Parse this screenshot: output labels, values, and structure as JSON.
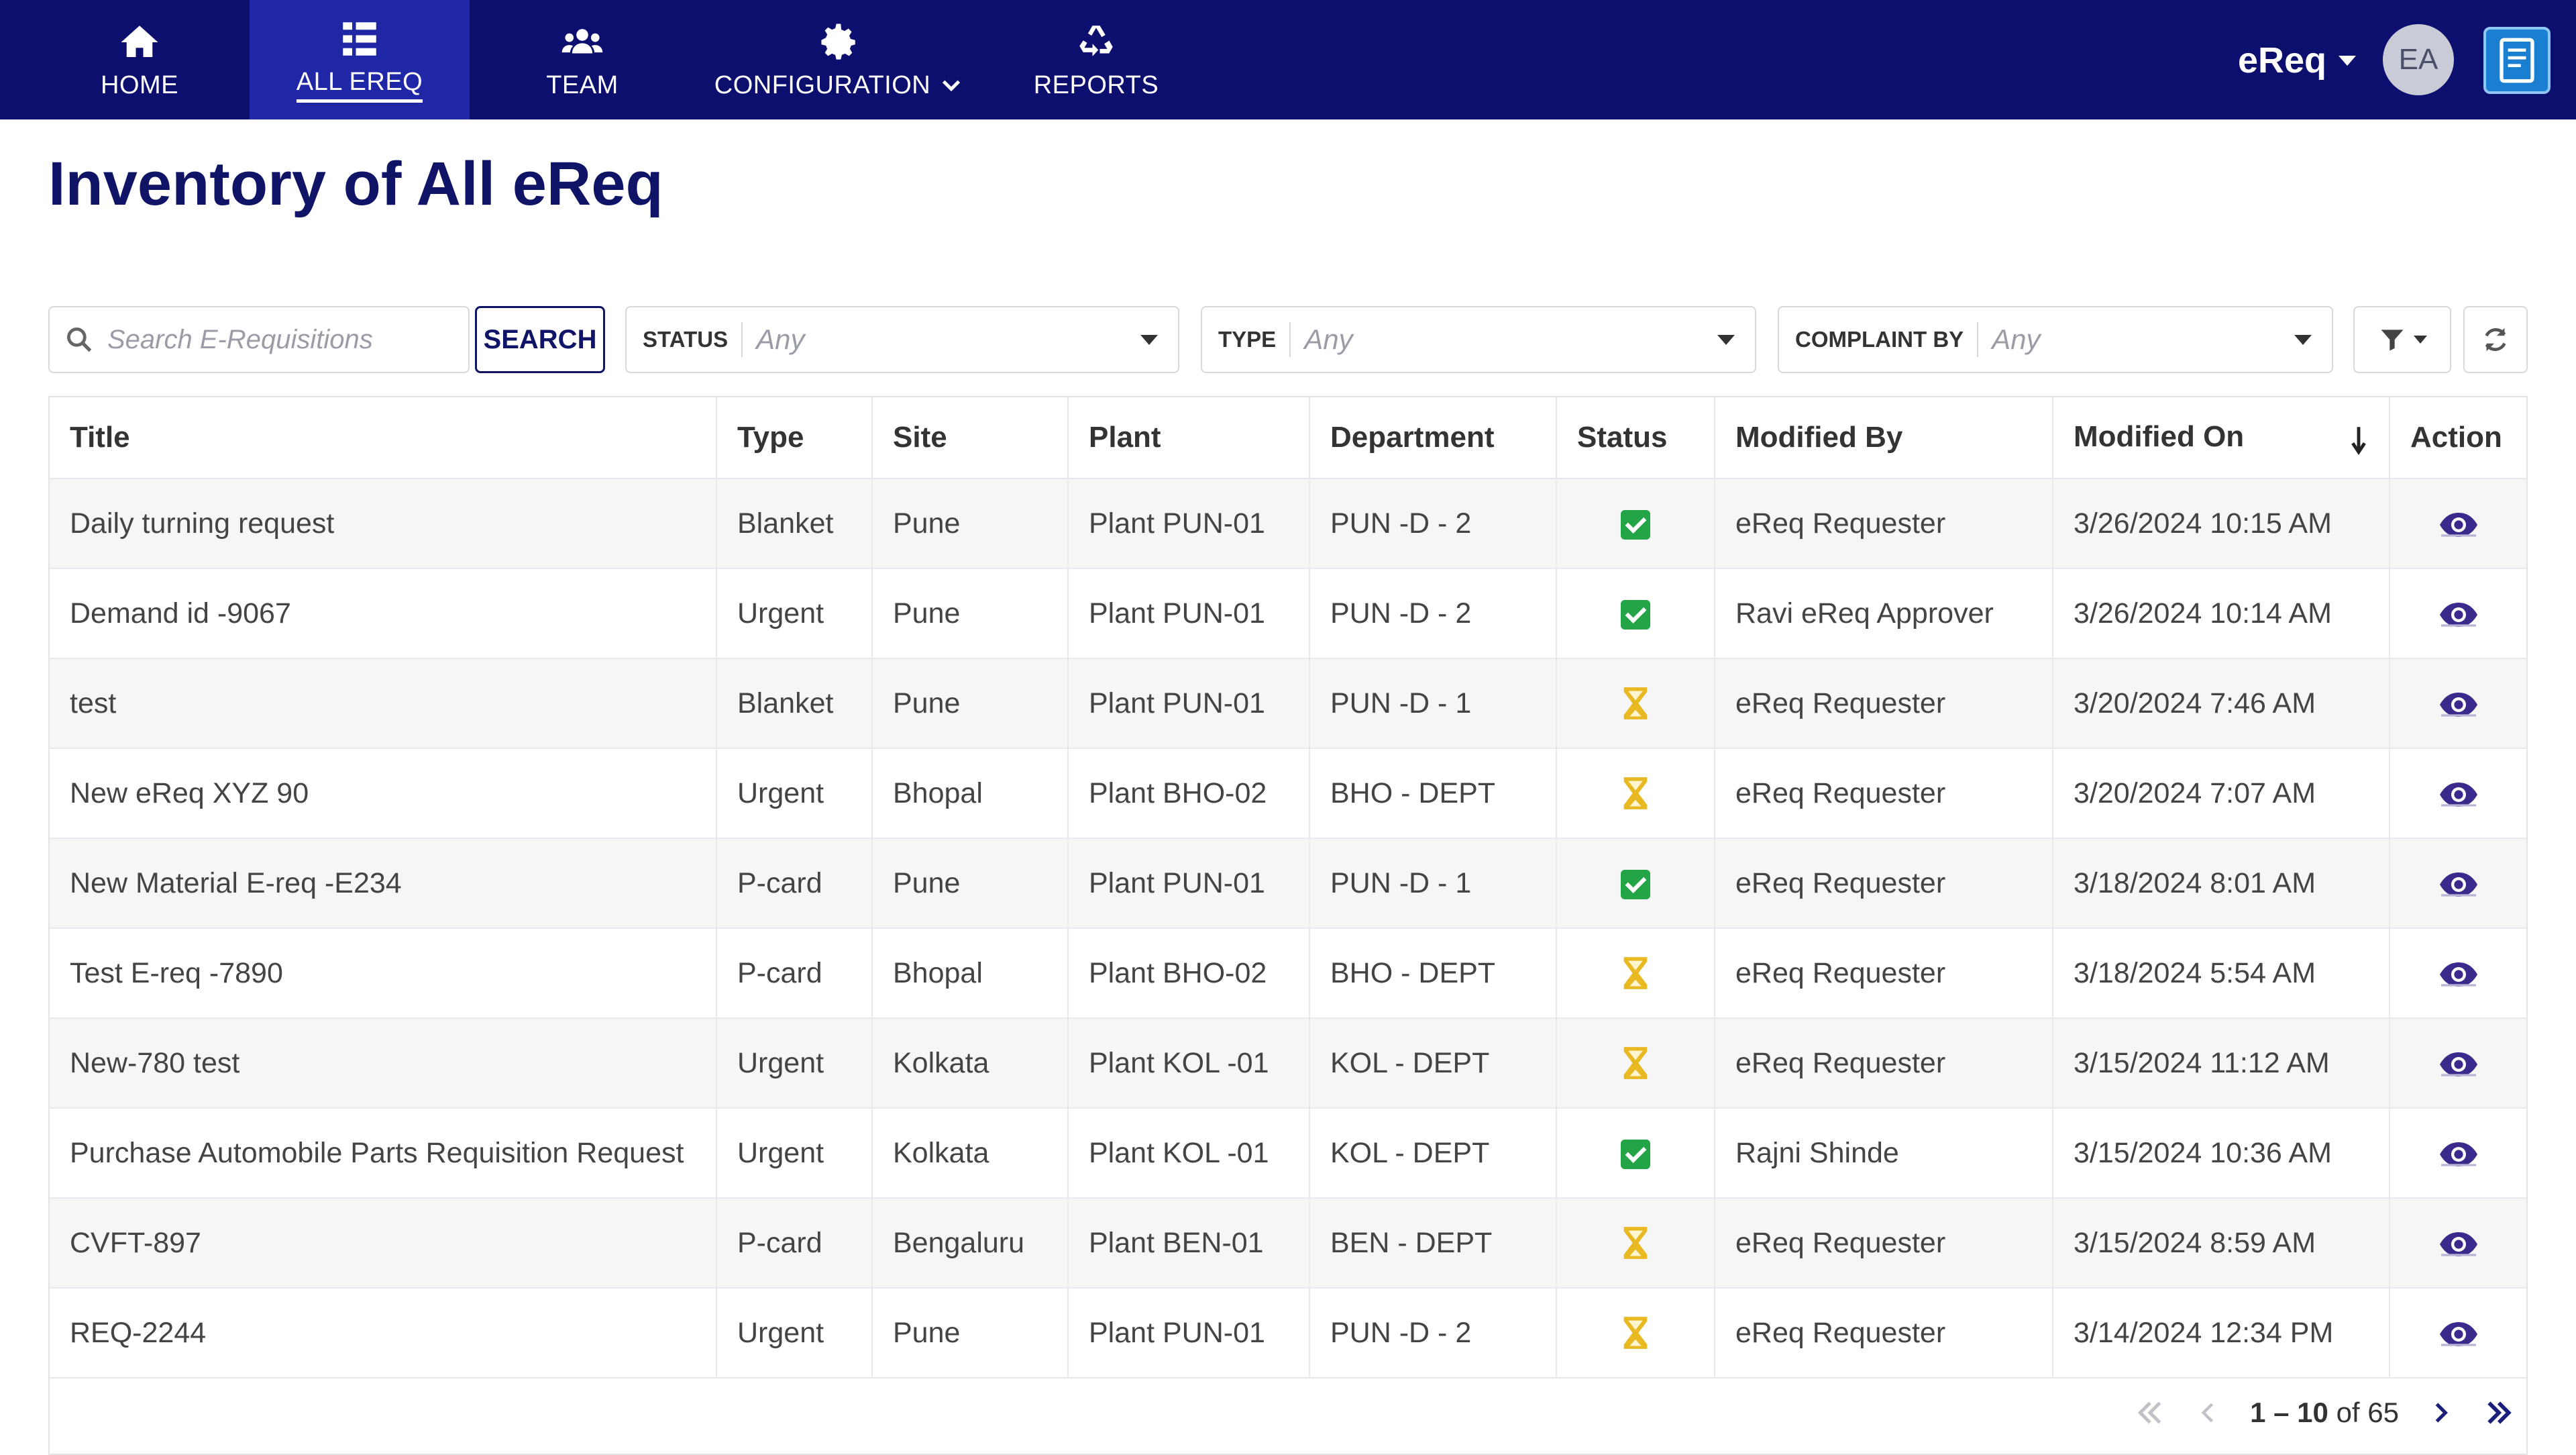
{
  "nav": {
    "items": [
      {
        "label": "HOME",
        "icon": "home-icon"
      },
      {
        "label": "ALL EREQ",
        "icon": "list-icon",
        "active": true
      },
      {
        "label": "TEAM",
        "icon": "team-icon"
      },
      {
        "label": "CONFIGURATION",
        "icon": "gear-icon",
        "has_dropdown": true
      },
      {
        "label": "REPORTS",
        "icon": "recycle-icon"
      }
    ],
    "app_switcher": "eReq",
    "avatar_initials": "EA"
  },
  "page": {
    "title": "Inventory of All eReq"
  },
  "filters": {
    "search_placeholder": "Search E-Requisitions",
    "search_button": "SEARCH",
    "status": {
      "label": "STATUS",
      "value": "Any"
    },
    "type": {
      "label": "TYPE",
      "value": "Any"
    },
    "complaint_by": {
      "label": "COMPLAINT BY",
      "value": "Any"
    }
  },
  "table": {
    "columns": [
      "Title",
      "Type",
      "Site",
      "Plant",
      "Department",
      "Status",
      "Modified By",
      "Modified On",
      "Action"
    ],
    "sorted_column": "Modified On",
    "rows": [
      {
        "title": "Daily turning request",
        "type": "Blanket",
        "site": "Pune",
        "plant": "Plant PUN-01",
        "department": "PUN -D - 2",
        "status": "approved",
        "modified_by": "eReq Requester",
        "modified_on": "3/26/2024 10:15 AM"
      },
      {
        "title": "Demand id -9067",
        "type": "Urgent",
        "site": "Pune",
        "plant": "Plant PUN-01",
        "department": "PUN -D - 2",
        "status": "approved",
        "modified_by": "Ravi eReq  Approver",
        "modified_on": "3/26/2024 10:14 AM"
      },
      {
        "title": "test",
        "type": "Blanket",
        "site": "Pune",
        "plant": "Plant PUN-01",
        "department": "PUN -D - 1",
        "status": "pending",
        "modified_by": "eReq Requester",
        "modified_on": "3/20/2024 7:46 AM"
      },
      {
        "title": "New eReq XYZ 90",
        "type": "Urgent",
        "site": "Bhopal",
        "plant": "Plant BHO-02",
        "department": "BHO - DEPT",
        "status": "pending",
        "modified_by": "eReq Requester",
        "modified_on": "3/20/2024 7:07 AM"
      },
      {
        "title": "New Material E-req -E234",
        "type": "P-card",
        "site": "Pune",
        "plant": "Plant PUN-01",
        "department": "PUN -D - 1",
        "status": "approved",
        "modified_by": "eReq Requester",
        "modified_on": "3/18/2024 8:01 AM"
      },
      {
        "title": "Test E-req -7890",
        "type": "P-card",
        "site": "Bhopal",
        "plant": "Plant BHO-02",
        "department": "BHO - DEPT",
        "status": "pending",
        "modified_by": "eReq Requester",
        "modified_on": "3/18/2024 5:54 AM"
      },
      {
        "title": "New-780 test",
        "type": "Urgent",
        "site": "Kolkata",
        "plant": "Plant KOL -01",
        "department": "KOL - DEPT",
        "status": "pending",
        "modified_by": "eReq Requester",
        "modified_on": "3/15/2024 11:12 AM"
      },
      {
        "title": "Purchase Automobile Parts Requisition Request",
        "type": "Urgent",
        "site": "Kolkata",
        "plant": "Plant KOL -01",
        "department": "KOL - DEPT",
        "status": "approved",
        "modified_by": "Rajni Shinde",
        "modified_on": "3/15/2024 10:36 AM"
      },
      {
        "title": "CVFT-897",
        "type": "P-card",
        "site": "Bengaluru",
        "plant": "Plant BEN-01",
        "department": "BEN - DEPT",
        "status": "pending",
        "modified_by": "eReq Requester",
        "modified_on": "3/15/2024 8:59 AM"
      },
      {
        "title": "REQ-2244",
        "type": "Urgent",
        "site": "Pune",
        "plant": "Plant PUN-01",
        "department": "PUN -D - 2",
        "status": "pending",
        "modified_by": "eReq Requester",
        "modified_on": "3/14/2024 12:34 PM"
      }
    ]
  },
  "pagination": {
    "range": "1 – 10",
    "of_label": "of",
    "total": "65"
  },
  "colors": {
    "nav_bg": "#0c0f6e",
    "nav_active": "#1f27a6",
    "approved": "#22a447",
    "pending": "#e8b923",
    "eye": "#3b2a8c"
  }
}
